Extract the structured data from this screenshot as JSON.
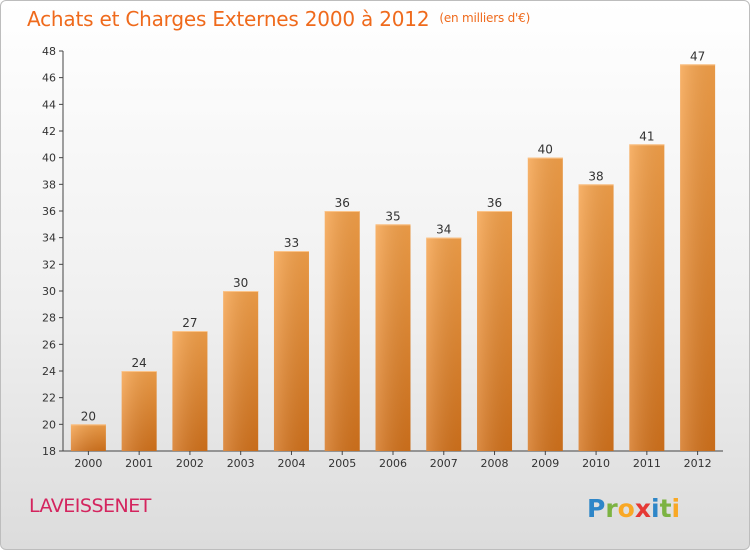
{
  "header": {
    "title": "Achats et Charges Externes 2000 à 2012",
    "unit": "(en milliers d'€)"
  },
  "footer": {
    "commune": "LAVEISSENET",
    "logo_text": "Proxiti"
  },
  "colors": {
    "bar_light": "#f6a24a",
    "bar_dark": "#d4731c",
    "title": "#ef6a1c",
    "commune": "#d4245e"
  },
  "chart_data": {
    "type": "bar",
    "title": "Achats et Charges Externes 2000 à 2012",
    "subtitle": "(en milliers d'€)",
    "categories": [
      "2000",
      "2001",
      "2002",
      "2003",
      "2004",
      "2005",
      "2006",
      "2007",
      "2008",
      "2009",
      "2010",
      "2011",
      "2012"
    ],
    "values": [
      20,
      24,
      27,
      30,
      33,
      36,
      35,
      34,
      36,
      40,
      38,
      41,
      47
    ],
    "ylim": [
      18,
      48
    ],
    "yticks": [
      18,
      20,
      22,
      24,
      26,
      28,
      30,
      32,
      34,
      36,
      38,
      40,
      42,
      44,
      46,
      48
    ],
    "grid": false,
    "legend": "none",
    "data_labels": true
  }
}
